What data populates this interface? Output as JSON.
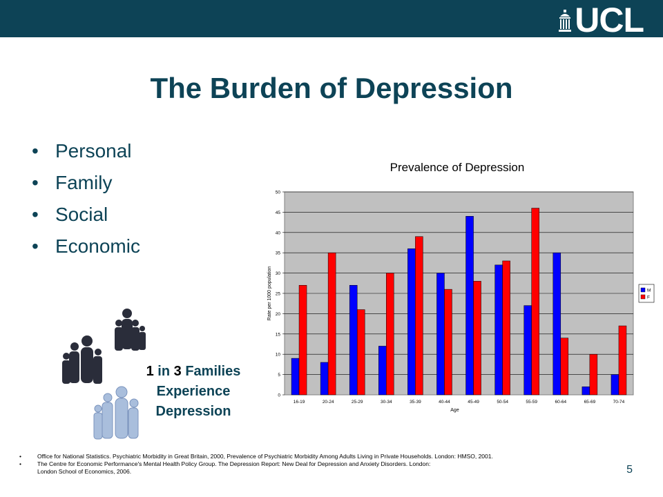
{
  "header": {
    "logo_text": "UCL",
    "bar_color": "#0d4356"
  },
  "title": "The Burden of Depression",
  "bullets": [
    "Personal",
    "Family",
    "Social",
    "Economic"
  ],
  "callout": {
    "num1": "1",
    "in": " in ",
    "num2": "3",
    "line1_rest": " Families",
    "line2": "Experience",
    "line3": "Depression"
  },
  "footnotes": [
    "Office for National Statistics. Psychiatric Morbidity in Great Britain, 2000, Prevalence of Psychiatric Morbidity Among Adults Living in Private Households. London: HMSO, 2001.",
    "The Centre for Economic Performance's Mental Health Policy Group. The Depression Report: New Deal for Depression and Anxiety Disorders. London:"
  ],
  "footnote_continuation": "London School of Economics, 2006.",
  "page_number": "5",
  "chart_data": {
    "type": "bar",
    "title": "Prevalence of Depression",
    "xlabel": "Age",
    "ylabel": "Rate per 1000 population",
    "ylim": [
      0,
      50
    ],
    "yticks": [
      0,
      5,
      10,
      15,
      20,
      25,
      30,
      35,
      40,
      45,
      50
    ],
    "grid": true,
    "legend_position": "right",
    "categories": [
      "16-19",
      "20-24",
      "25-29",
      "30-34",
      "35-39",
      "40-44",
      "45-49",
      "50-54",
      "55-59",
      "60-64",
      "65-69",
      "70-74"
    ],
    "series": [
      {
        "name": "M",
        "color": "#0000ff",
        "values": [
          9,
          8,
          27,
          12,
          36,
          30,
          44,
          32,
          22,
          35,
          2,
          5
        ]
      },
      {
        "name": "F",
        "color": "#ff0000",
        "values": [
          27,
          35,
          21,
          30,
          39,
          26,
          28,
          33,
          46,
          14,
          10,
          17
        ]
      }
    ],
    "plot_background": "#c0c0c0"
  }
}
